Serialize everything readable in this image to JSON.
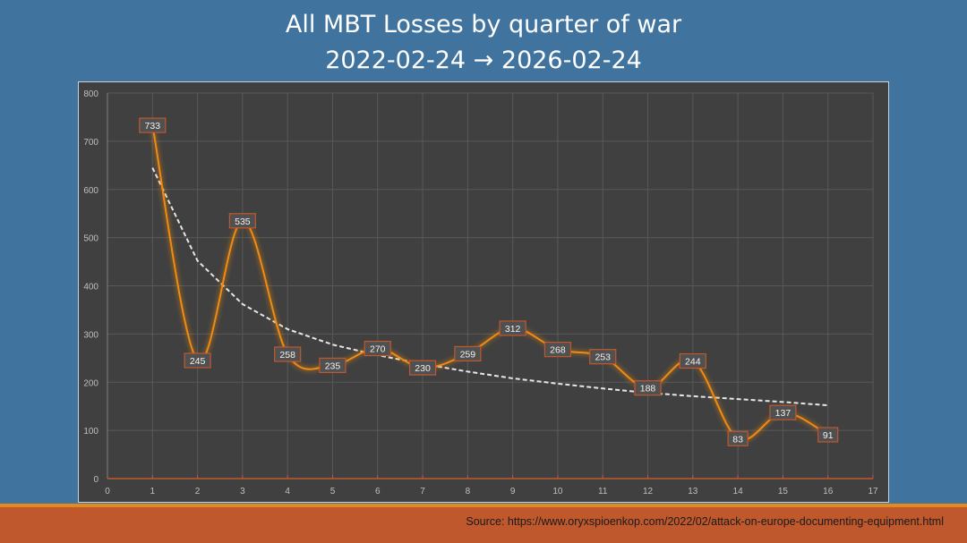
{
  "header": {
    "title_line1": "All MBT Losses by quarter of war",
    "title_line2": "2022-02-24 → 2026-02-24"
  },
  "footer": {
    "source": "Source:  https://www.oryxspioenkop.com/2022/02/attack-on-europe-documenting-equipment.html"
  },
  "colors": {
    "background": "#40739e",
    "plot_bg": "#404040",
    "series": "#f08a12",
    "label_border": "#c0582c",
    "trend": "#e6e6e6",
    "footer": "#bf582c"
  },
  "chart_data": {
    "type": "line",
    "title": "All MBT Losses by quarter of war",
    "subtitle": "2022-02-24 → 2026-02-24",
    "xlabel": "",
    "ylabel": "",
    "xlim": [
      0,
      17
    ],
    "ylim": [
      0,
      800
    ],
    "x_ticks": [
      0,
      1,
      2,
      3,
      4,
      5,
      6,
      7,
      8,
      9,
      10,
      11,
      12,
      13,
      14,
      15,
      16,
      17
    ],
    "y_ticks": [
      0,
      100,
      200,
      300,
      400,
      500,
      600,
      700,
      800
    ],
    "grid": true,
    "legend": "none",
    "series": [
      {
        "name": "MBT losses",
        "smooth": true,
        "x": [
          1,
          2,
          3,
          4,
          5,
          6,
          7,
          8,
          9,
          10,
          11,
          12,
          13,
          14,
          15,
          16
        ],
        "values": [
          733,
          245,
          535,
          258,
          235,
          270,
          230,
          259,
          312,
          268,
          253,
          188,
          244,
          83,
          137,
          91
        ],
        "data_labels": true
      },
      {
        "name": "Trend (logarithmic)",
        "style": "dashed",
        "x_range": [
          1,
          16
        ],
        "approx_values": [
          645,
          452,
          362,
          310,
          278,
          256,
          238,
          222,
          208,
          197,
          187,
          178,
          171,
          165,
          159,
          152
        ]
      }
    ]
  }
}
